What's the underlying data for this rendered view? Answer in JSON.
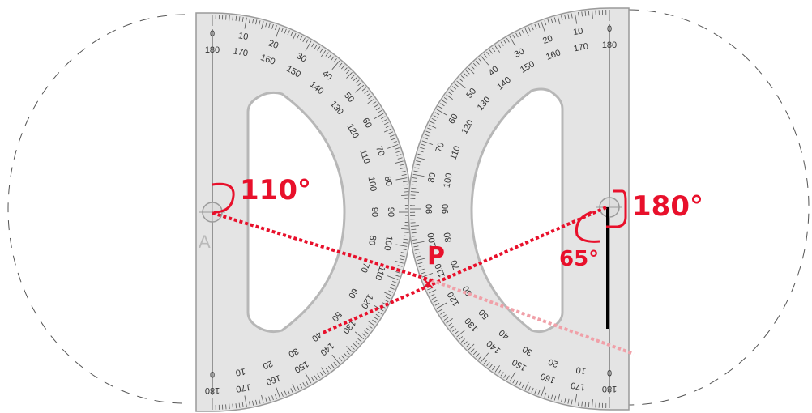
{
  "annotations": {
    "angle_left": "110°",
    "angle_right": "180°",
    "angle_small": "65°",
    "point_label": "P",
    "point_mark": "✕",
    "vertex_label": "A"
  },
  "protractor_left": {
    "outer_scale": [
      "0",
      "10",
      "20",
      "30",
      "40",
      "50",
      "60",
      "70",
      "80",
      "90",
      "100",
      "110",
      "120",
      "130",
      "140",
      "150",
      "160",
      "170",
      "180"
    ],
    "inner_scale": [
      "180",
      "170",
      "160",
      "150",
      "140",
      "130",
      "120",
      "110",
      "100",
      "90",
      "80",
      "70",
      "60",
      "50",
      "40",
      "30",
      "20",
      "10",
      "0"
    ]
  },
  "protractor_right": {
    "outer_scale": [
      "0",
      "10",
      "20",
      "30",
      "40",
      "50",
      "60",
      "70",
      "80",
      "90",
      "100",
      "110",
      "120",
      "130",
      "140",
      "150",
      "160",
      "170",
      "180"
    ],
    "inner_scale": [
      "180",
      "170",
      "160",
      "150",
      "140",
      "130",
      "120",
      "110",
      "100",
      "90",
      "80",
      "70",
      "60",
      "50",
      "40",
      "30",
      "20",
      "10",
      "0"
    ]
  },
  "colors": {
    "annotation": "#e8102b",
    "dashed_outline": "#555555",
    "protractor_fill": "#e4e4e4",
    "protractor_edge": "#9a9a9a",
    "marker_line": "#000000"
  }
}
